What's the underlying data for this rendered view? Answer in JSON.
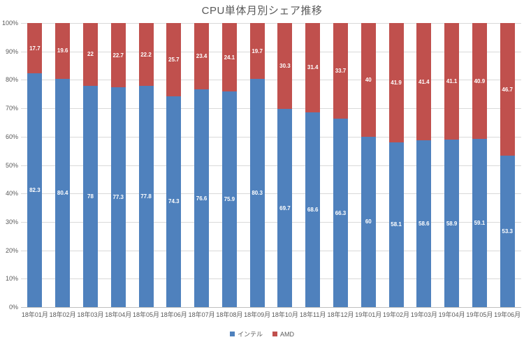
{
  "chart_data": {
    "type": "bar",
    "stacked": true,
    "percent_stacked": true,
    "title": "CPU単体月別シェア推移",
    "categories": [
      "18年01月",
      "18年02月",
      "18年03月",
      "18年04月",
      "18年05月",
      "18年06月",
      "18年07月",
      "18年08月",
      "18年09月",
      "18年10月",
      "18年11月",
      "18年12月",
      "19年01月",
      "19年02月",
      "19年03月",
      "19年04月",
      "19年05月",
      "19年06月"
    ],
    "series": [
      {
        "name": "インテル",
        "color": "#4F81BD",
        "values": [
          82.3,
          80.4,
          78,
          77.3,
          77.8,
          74.3,
          76.6,
          75.9,
          80.3,
          69.7,
          68.6,
          66.3,
          60,
          58.1,
          58.6,
          58.9,
          59.1,
          53.3
        ],
        "labels": [
          "82.3",
          "80.4",
          "78",
          "77.3",
          "77.8",
          "74.3",
          "76.6",
          "75.9",
          "80.3",
          "69.7",
          "68.6",
          "66.3",
          "60",
          "58.1",
          "58.6",
          "58.9",
          "59.1",
          "53.3"
        ]
      },
      {
        "name": "AMD",
        "color": "#C0504D",
        "values": [
          17.7,
          19.6,
          22,
          22.7,
          22.2,
          25.7,
          23.4,
          24.1,
          19.7,
          30.3,
          31.4,
          33.7,
          40,
          41.9,
          41.4,
          41.1,
          40.9,
          46.7
        ],
        "labels": [
          "17.7",
          "19.6",
          "22",
          "22.7",
          "22.2",
          "25.7",
          "23.4",
          "24.1",
          "19.7",
          "30.3",
          "31.4",
          "33.7",
          "40",
          "41.9",
          "41.4",
          "41.1",
          "40.9",
          "46.7"
        ]
      }
    ],
    "ylim": [
      0,
      100
    ],
    "ytick_step": 10,
    "ytick_labels": [
      "0%",
      "10%",
      "20%",
      "30%",
      "40%",
      "50%",
      "60%",
      "70%",
      "80%",
      "90%",
      "100%"
    ],
    "grid": true,
    "legend_position": "bottom",
    "data_label_color": "#ffffff",
    "grid_color": "#d9d9d9",
    "axis_text_color": "#595959"
  }
}
